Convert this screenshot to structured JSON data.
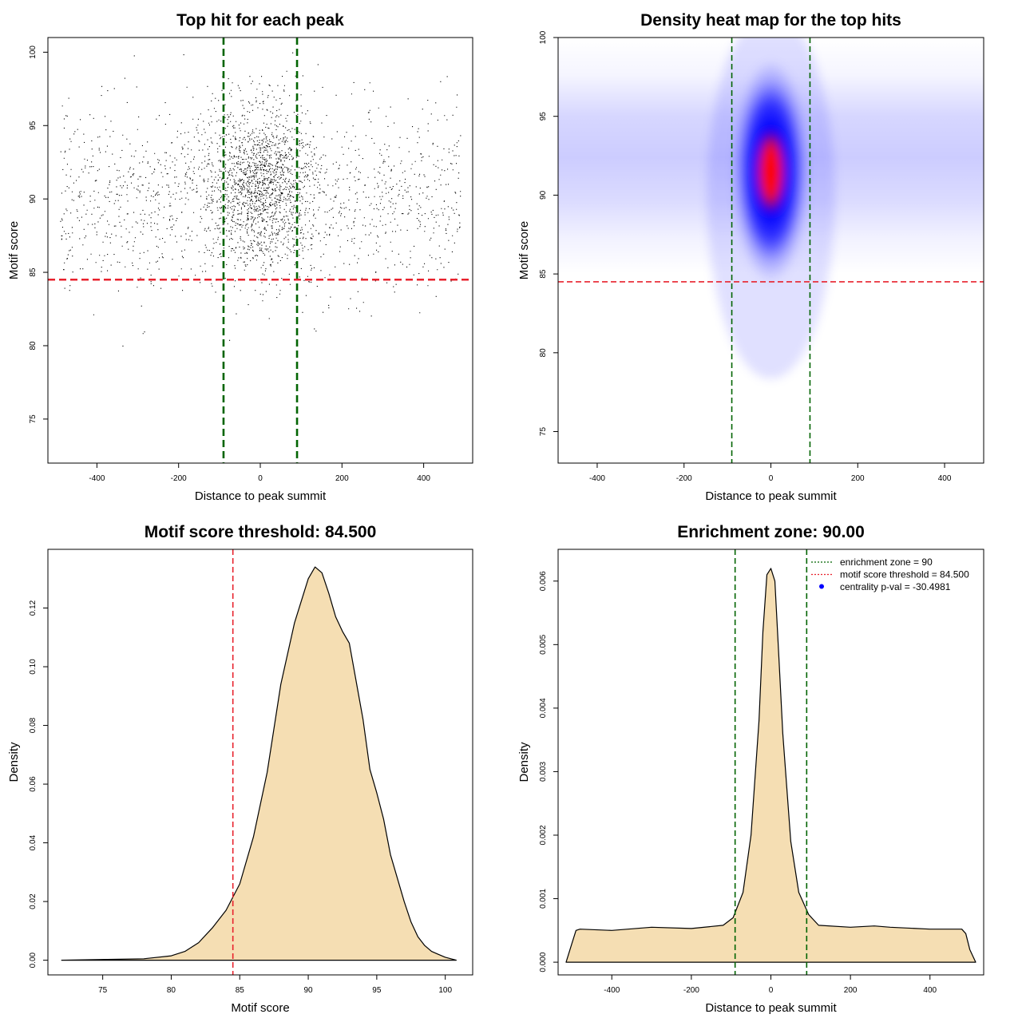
{
  "chart_data": [
    {
      "type": "scatter",
      "title": "Top hit for each peak",
      "xlabel": "Distance to peak summit",
      "ylabel": "Motif score",
      "xlim": [
        -520,
        520
      ],
      "ylim": [
        72,
        101
      ],
      "xticks": [
        -400,
        -200,
        0,
        200,
        400
      ],
      "yticks": [
        75,
        80,
        85,
        90,
        95,
        100
      ],
      "vlines": [
        {
          "x": -90,
          "color": "#006400"
        },
        {
          "x": 90,
          "color": "#006400"
        }
      ],
      "hlines": [
        {
          "y": 84.5,
          "color": "#e8222d"
        }
      ],
      "x_range": [
        -490,
        490
      ],
      "center_spread": 65,
      "score_mean": 90,
      "score_center_mean": 91,
      "score_sd": 3.2,
      "grid": false
    },
    {
      "type": "heatmap",
      "title": "Density heat map for the top hits",
      "xlabel": "Distance to peak summit",
      "ylabel": "Motif score",
      "xlim": [
        -490,
        490
      ],
      "ylim": [
        73,
        100
      ],
      "xticks": [
        -400,
        -200,
        0,
        200,
        400
      ],
      "yticks": [
        75,
        80,
        85,
        90,
        95,
        100
      ],
      "vlines": [
        {
          "x": -90,
          "color": "#006400"
        },
        {
          "x": 90,
          "color": "#006400"
        }
      ],
      "hlines": [
        {
          "y": 84.5,
          "color": "#e8222d"
        }
      ],
      "hotspot": {
        "x": 0,
        "y": 92
      },
      "colors": [
        "#ffffff",
        "#0000ff",
        "#ff0000"
      ],
      "grid": false
    },
    {
      "type": "area",
      "title": "Motif score threshold: 84.500",
      "xlabel": "Motif score",
      "ylabel": "Density",
      "xlim": [
        71,
        102
      ],
      "ylim": [
        -0.005,
        0.14
      ],
      "xticks": [
        75,
        80,
        85,
        90,
        95,
        100
      ],
      "yticks": [
        0.0,
        0.02,
        0.04,
        0.06,
        0.08,
        0.1,
        0.12
      ],
      "ytick_labels": [
        "0.00",
        "0.02",
        "0.04",
        "0.06",
        "0.08",
        "0.10",
        "0.12"
      ],
      "fill": "#f5deb3",
      "vlines": [
        {
          "x": 84.5,
          "color": "#e8222d"
        }
      ],
      "x": [
        72,
        78,
        80,
        81,
        82,
        83,
        84,
        85,
        86,
        87,
        88,
        89,
        90,
        90.5,
        91,
        91.5,
        92,
        92.5,
        93,
        94,
        94.5,
        95,
        95.5,
        96,
        96.5,
        97,
        97.5,
        98,
        98.5,
        99,
        99.5,
        100,
        100.8
      ],
      "y": [
        0.0,
        0.0005,
        0.0015,
        0.003,
        0.006,
        0.011,
        0.017,
        0.026,
        0.042,
        0.064,
        0.094,
        0.115,
        0.13,
        0.134,
        0.132,
        0.125,
        0.117,
        0.112,
        0.108,
        0.082,
        0.065,
        0.057,
        0.048,
        0.036,
        0.028,
        0.02,
        0.013,
        0.008,
        0.005,
        0.003,
        0.002,
        0.001,
        0.0
      ],
      "grid": false
    },
    {
      "type": "area",
      "title": "Enrichment zone: 90.00",
      "xlabel": "Distance to peak summit",
      "ylabel": "Density",
      "xlim": [
        -535,
        535
      ],
      "ylim": [
        -0.0002,
        0.0065
      ],
      "xticks": [
        -400,
        -200,
        0,
        200,
        400
      ],
      "yticks": [
        0.0,
        0.001,
        0.002,
        0.003,
        0.004,
        0.005,
        0.006
      ],
      "ytick_labels": [
        "0.000",
        "0.001",
        "0.002",
        "0.003",
        "0.004",
        "0.005",
        "0.006"
      ],
      "fill": "#f5deb3",
      "vlines": [
        {
          "x": -90,
          "color": "#006400"
        },
        {
          "x": 90,
          "color": "#006400"
        }
      ],
      "x": [
        -515,
        -500,
        -490,
        -480,
        -400,
        -300,
        -200,
        -120,
        -95,
        -70,
        -50,
        -30,
        -20,
        -10,
        0,
        10,
        20,
        30,
        50,
        70,
        95,
        120,
        200,
        260,
        300,
        400,
        480,
        490,
        500,
        515
      ],
      "y": [
        0.0,
        0.0003,
        0.0005,
        0.00052,
        0.0005,
        0.00055,
        0.00053,
        0.00058,
        0.0007,
        0.0011,
        0.002,
        0.0038,
        0.0052,
        0.0061,
        0.0062,
        0.006,
        0.0048,
        0.0036,
        0.0019,
        0.0011,
        0.00075,
        0.00058,
        0.00055,
        0.00057,
        0.00055,
        0.00052,
        0.00052,
        0.00045,
        0.0002,
        0.0
      ],
      "legend": {
        "placement": "top-right",
        "entries": [
          {
            "label": "enrichment zone = 90",
            "color": "#006400",
            "marker": "dotted-line"
          },
          {
            "label": "motif score threshold = 84.500",
            "color": "#e8222d",
            "marker": "dotted-line"
          },
          {
            "label": "centrality p-val = -30.4981",
            "color": "#0000ff",
            "marker": "dot"
          }
        ]
      },
      "grid": false
    }
  ]
}
